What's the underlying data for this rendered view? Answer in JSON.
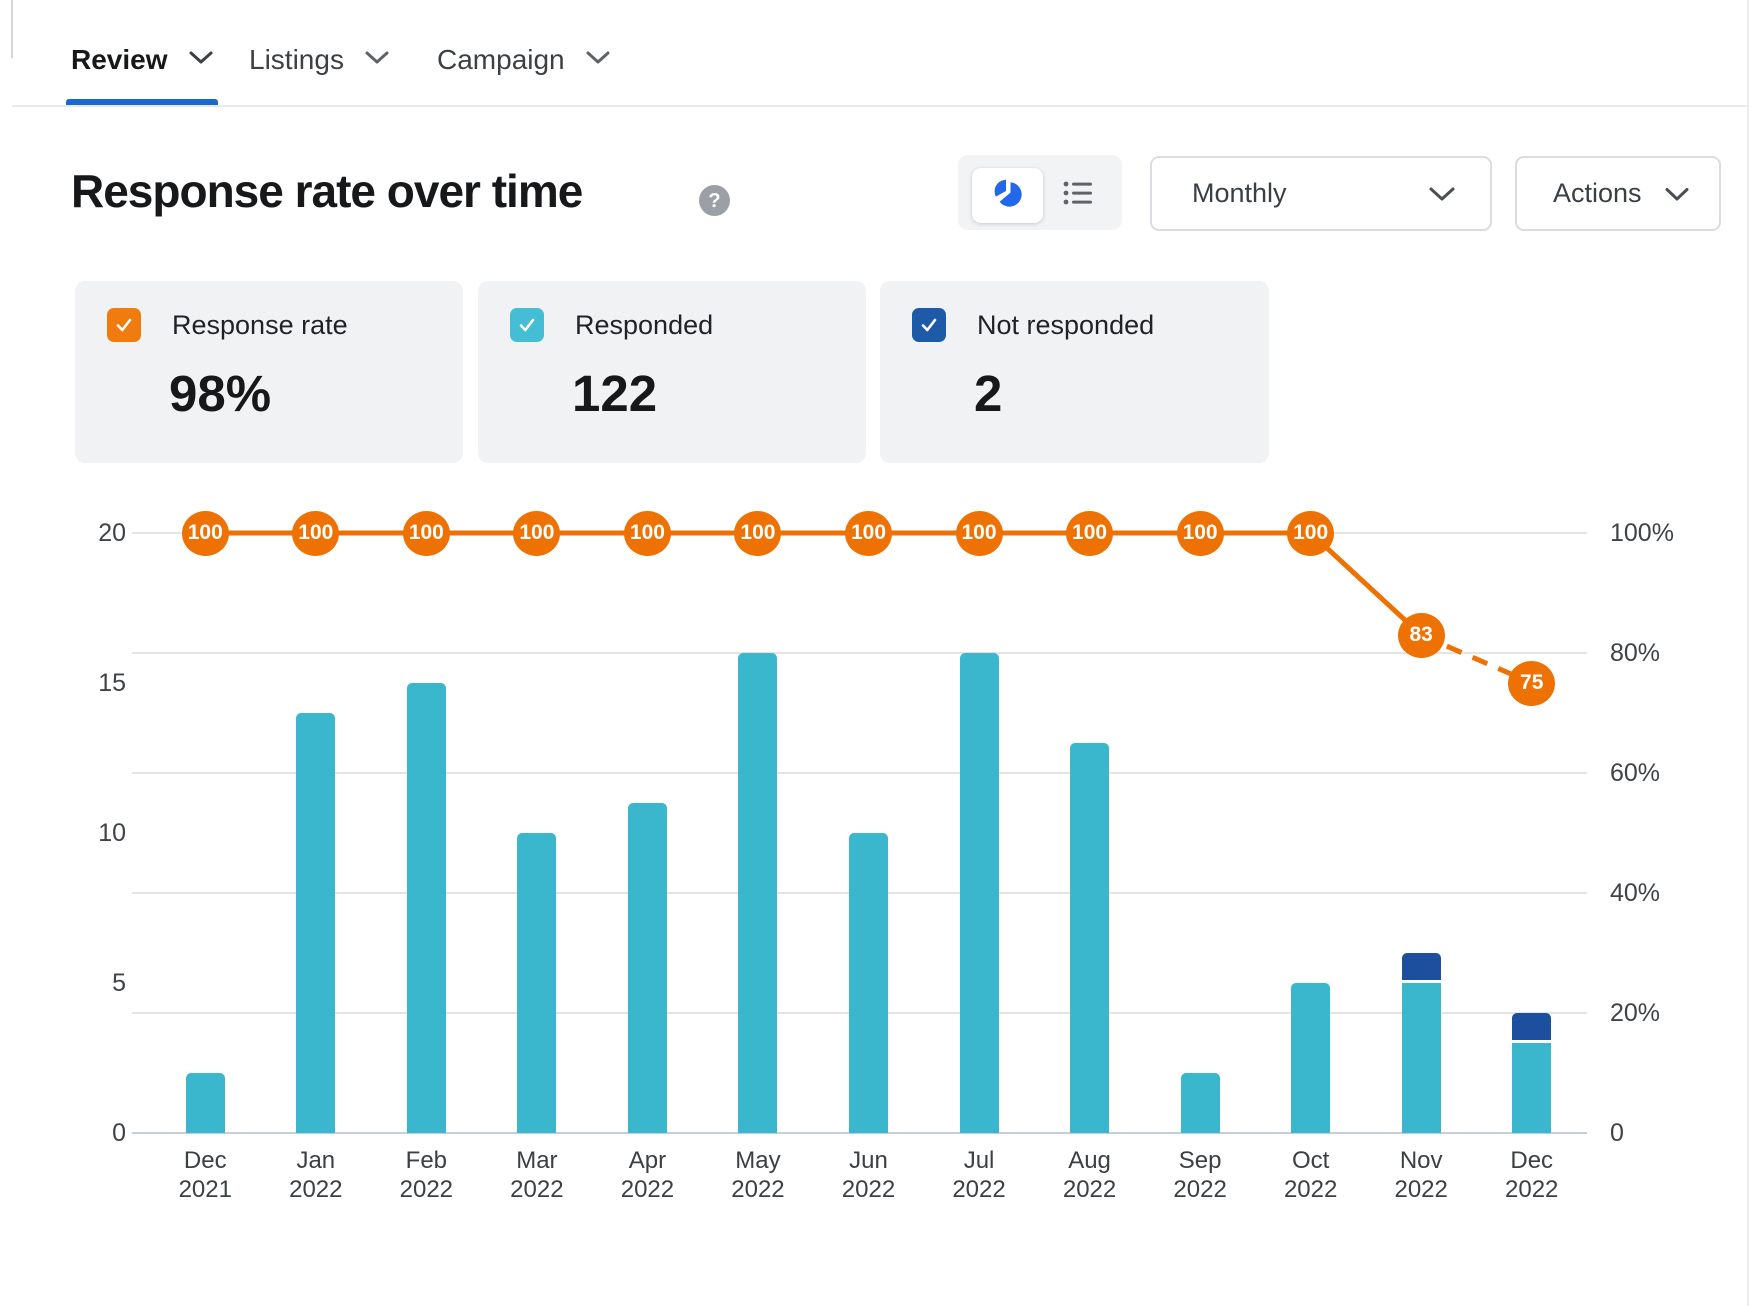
{
  "tabs": [
    {
      "label": "Review",
      "active": true
    },
    {
      "label": "Listings",
      "active": false
    },
    {
      "label": "Campaign",
      "active": false
    }
  ],
  "header": {
    "title": "Response rate over time",
    "help_glyph": "?"
  },
  "controls": {
    "view_toggle": [
      {
        "icon": "pie-chart-icon",
        "active": true
      },
      {
        "icon": "list-icon",
        "active": false
      }
    ],
    "period_select": {
      "value": "Monthly"
    },
    "actions_button": {
      "label": "Actions"
    }
  },
  "summary_cards": [
    {
      "label": "Response rate",
      "value": "98%",
      "checkbox_color": "#f07c10",
      "checked": true
    },
    {
      "label": "Responded",
      "value": "122",
      "checkbox_color": "#45bdd5",
      "checked": true
    },
    {
      "label": "Not responded",
      "value": "2",
      "checkbox_color": "#1d5aa8",
      "checked": true
    }
  ],
  "colors": {
    "accent_blue": "#1967d2",
    "pie_icon_blue": "#2368e8",
    "bar_teal": "#3bb7cd",
    "bar_navy": "#1c4f9e",
    "line_orange": "#ee7203",
    "card_bg": "#f0f2f4",
    "gridline": "#e3e4e6",
    "axis_base": "#c4cde4"
  },
  "chart_data": {
    "type": "bar",
    "title": "Response rate over time",
    "categories": [
      "Dec 2021",
      "Jan 2022",
      "Feb 2022",
      "Mar 2022",
      "Apr 2022",
      "May 2022",
      "Jun 2022",
      "Jul 2022",
      "Aug 2022",
      "Sep 2022",
      "Oct 2022",
      "Nov 2022",
      "Dec 2022"
    ],
    "series": [
      {
        "name": "Responded",
        "type": "bar",
        "stacked": true,
        "color": "#3bb7cd",
        "values": [
          2,
          14,
          15,
          10,
          11,
          16,
          10,
          16,
          13,
          2,
          5,
          5,
          3
        ]
      },
      {
        "name": "Not responded",
        "type": "bar",
        "stacked": true,
        "color": "#1c4f9e",
        "values": [
          0,
          0,
          0,
          0,
          0,
          0,
          0,
          0,
          0,
          0,
          0,
          1,
          1
        ]
      },
      {
        "name": "Response rate",
        "type": "line",
        "axis": "right",
        "color": "#ee7203",
        "values": [
          100,
          100,
          100,
          100,
          100,
          100,
          100,
          100,
          100,
          100,
          100,
          83,
          75
        ],
        "dashed_from_index": 11,
        "point_labels": [
          "100",
          "100",
          "100",
          "100",
          "100",
          "100",
          "100",
          "100",
          "100",
          "100",
          "100",
          "83",
          "75"
        ]
      }
    ],
    "left_axis": {
      "max": 20,
      "ticks": [
        0,
        5,
        10,
        15,
        20
      ]
    },
    "right_axis": {
      "max": 100,
      "ticks": [
        {
          "value": 0,
          "label": "0"
        },
        {
          "value": 20,
          "label": "20%"
        },
        {
          "value": 40,
          "label": "40%"
        },
        {
          "value": 60,
          "label": "60%"
        },
        {
          "value": 80,
          "label": "80%"
        },
        {
          "value": 100,
          "label": "100%"
        }
      ]
    },
    "grid": "horizontal, aligned to right-axis ticks",
    "legend_position": "top cards"
  }
}
